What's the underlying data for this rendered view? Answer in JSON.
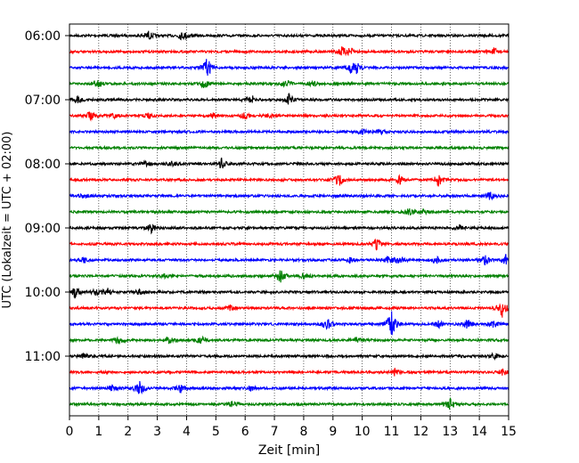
{
  "chart_data": {
    "type": "line",
    "subtype": "helicorder",
    "xlabel": "Zeit  [min]",
    "ylabel": "UTC (Lokalzeit = UTC + 02:00)",
    "xlim": [
      0,
      15
    ],
    "x_ticks": [
      0,
      1,
      2,
      3,
      4,
      5,
      6,
      7,
      8,
      9,
      10,
      11,
      12,
      13,
      14,
      15
    ],
    "x_grid": "dotted vertical lines at each minute",
    "trace_colors": [
      "#000000",
      "#ff0000",
      "#0000ff",
      "#008000"
    ],
    "trace_interval_min": 15,
    "traces": [
      {
        "start": "06:00",
        "events": [
          [
            2.7,
            0.5
          ],
          [
            3.8,
            0.3
          ],
          [
            4.0,
            0.3
          ]
        ]
      },
      {
        "start": "06:15",
        "events": [
          [
            9.3,
            0.5
          ],
          [
            9.6,
            0.4
          ],
          [
            14.5,
            0.4
          ]
        ]
      },
      {
        "start": "06:30",
        "events": [
          [
            4.7,
            1.2
          ],
          [
            9.8,
            0.6
          ],
          [
            9.6,
            0.4
          ]
        ]
      },
      {
        "start": "06:45",
        "events": [
          [
            1.0,
            0.4
          ],
          [
            4.6,
            0.5
          ],
          [
            7.4,
            0.5
          ],
          [
            8.3,
            0.3
          ]
        ]
      },
      {
        "start": "07:00",
        "events": [
          [
            0.3,
            0.4
          ],
          [
            6.2,
            0.6
          ],
          [
            7.5,
            0.6
          ]
        ]
      },
      {
        "start": "07:15",
        "events": [
          [
            0.7,
            0.5
          ],
          [
            1.5,
            0.3
          ],
          [
            2.7,
            0.3
          ],
          [
            4.9,
            0.3
          ],
          [
            6.0,
            0.4
          ],
          [
            6.8,
            0.3
          ]
        ]
      },
      {
        "start": "07:30",
        "events": [
          [
            10.0,
            0.3
          ],
          [
            10.6,
            0.3
          ]
        ]
      },
      {
        "start": "07:45",
        "events": []
      },
      {
        "start": "08:00",
        "events": [
          [
            2.6,
            0.3
          ],
          [
            3.5,
            0.3
          ],
          [
            5.2,
            0.6
          ]
        ]
      },
      {
        "start": "08:15",
        "events": [
          [
            9.2,
            0.7
          ],
          [
            11.3,
            0.5
          ],
          [
            12.6,
            0.7
          ]
        ]
      },
      {
        "start": "08:30",
        "events": [
          [
            0.5,
            0.3
          ],
          [
            14.4,
            0.6
          ]
        ]
      },
      {
        "start": "08:45",
        "events": [
          [
            11.6,
            0.4
          ],
          [
            12.1,
            0.3
          ]
        ]
      },
      {
        "start": "09:00",
        "events": [
          [
            2.8,
            0.5
          ],
          [
            13.3,
            0.3
          ]
        ]
      },
      {
        "start": "09:15",
        "events": [
          [
            10.5,
            0.6
          ]
        ]
      },
      {
        "start": "09:30",
        "events": [
          [
            0.5,
            0.3
          ],
          [
            9.6,
            0.3
          ],
          [
            10.9,
            0.5
          ],
          [
            11.3,
            0.5
          ],
          [
            12.5,
            0.5
          ],
          [
            14.2,
            0.6
          ],
          [
            14.9,
            0.6
          ]
        ]
      },
      {
        "start": "09:45",
        "events": [
          [
            3.2,
            0.3
          ],
          [
            7.2,
            0.8
          ],
          [
            8.0,
            0.3
          ]
        ]
      },
      {
        "start": "10:00",
        "events": [
          [
            0.2,
            0.7
          ],
          [
            0.9,
            0.4
          ],
          [
            1.3,
            0.4
          ],
          [
            2.4,
            0.3
          ]
        ]
      },
      {
        "start": "10:15",
        "events": [
          [
            5.5,
            0.3
          ],
          [
            14.8,
            1.2
          ]
        ]
      },
      {
        "start": "10:30",
        "events": [
          [
            8.8,
            0.8
          ],
          [
            11.0,
            1.5
          ],
          [
            12.6,
            0.4
          ],
          [
            13.6,
            0.6
          ],
          [
            14.5,
            0.4
          ]
        ]
      },
      {
        "start": "10:45",
        "events": [
          [
            1.7,
            0.5
          ],
          [
            3.4,
            0.4
          ],
          [
            4.5,
            0.4
          ],
          [
            9.8,
            0.3
          ]
        ]
      },
      {
        "start": "11:00",
        "events": [
          [
            0.5,
            0.3
          ],
          [
            14.5,
            0.3
          ]
        ]
      },
      {
        "start": "11:15",
        "events": [
          [
            11.1,
            0.4
          ],
          [
            14.8,
            0.4
          ]
        ]
      },
      {
        "start": "11:30",
        "events": [
          [
            1.5,
            0.4
          ],
          [
            2.4,
            0.8
          ],
          [
            3.8,
            0.5
          ],
          [
            6.2,
            0.3
          ]
        ]
      },
      {
        "start": "11:45",
        "events": [
          [
            5.6,
            0.4
          ],
          [
            13.0,
            0.7
          ]
        ]
      }
    ],
    "y_tick_labels": [
      "06:00",
      "07:00",
      "08:00",
      "09:00",
      "10:00",
      "11:00"
    ]
  }
}
